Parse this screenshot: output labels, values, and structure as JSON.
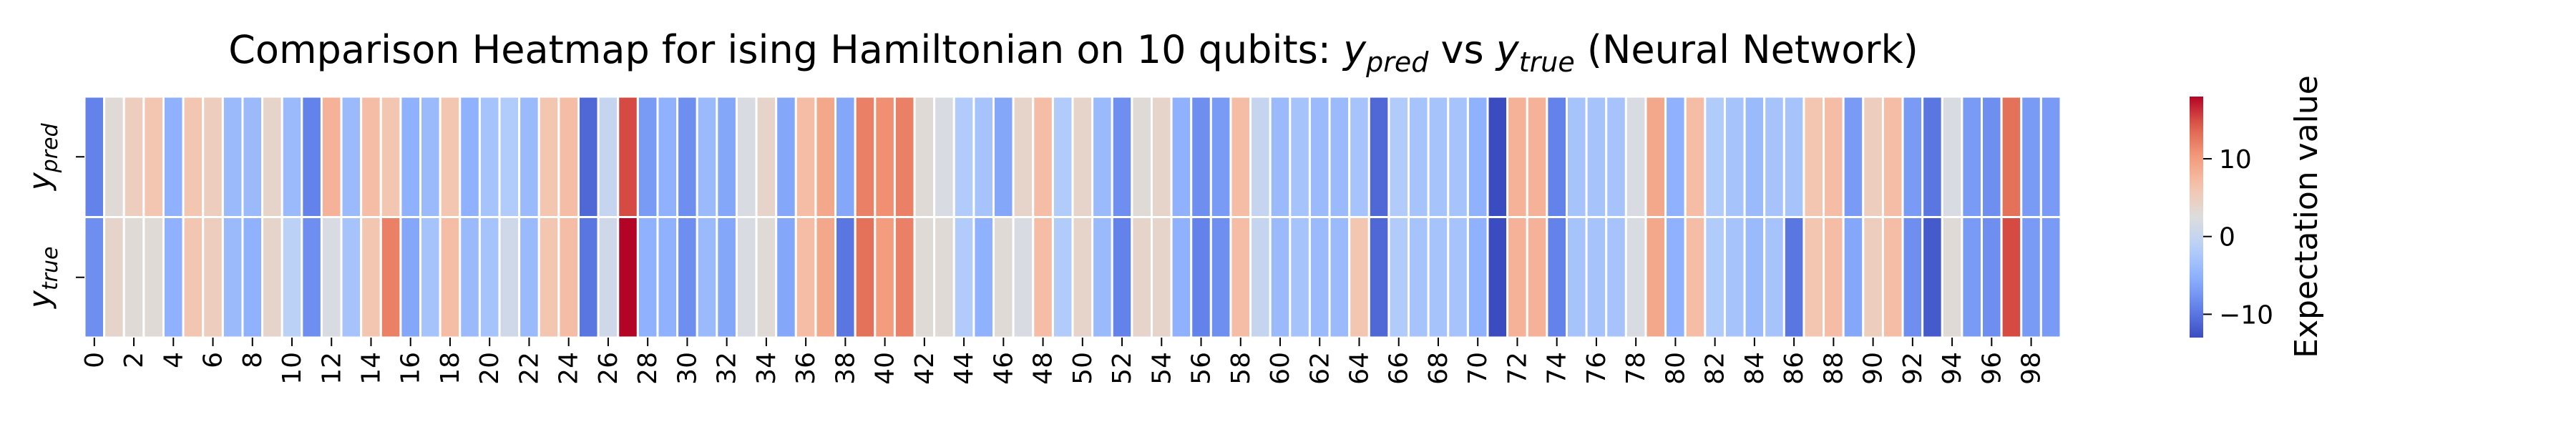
{
  "chart_data": {
    "type": "heatmap",
    "title": {
      "prefix": "Comparison Heatmap for ising Hamiltonian on 10 qubits: ",
      "pred_symbol": "y",
      "pred_sub": "pred",
      "vs": " vs ",
      "true_symbol": "y",
      "true_sub": "true",
      "suffix": " (Neural Network)"
    },
    "rows": [
      {
        "symbol": "y",
        "sub": "pred"
      },
      {
        "symbol": "y",
        "sub": "true"
      }
    ],
    "columns": [
      0,
      1,
      2,
      3,
      4,
      5,
      6,
      7,
      8,
      9,
      10,
      11,
      12,
      13,
      14,
      15,
      16,
      17,
      18,
      19,
      20,
      21,
      22,
      23,
      24,
      25,
      26,
      27,
      28,
      29,
      30,
      31,
      32,
      33,
      34,
      35,
      36,
      37,
      38,
      39,
      40,
      41,
      42,
      43,
      44,
      45,
      46,
      47,
      48,
      49,
      50,
      51,
      52,
      53,
      54,
      55,
      56,
      57,
      58,
      59,
      60,
      61,
      62,
      63,
      64,
      65,
      66,
      67,
      68,
      69,
      70,
      71,
      72,
      73,
      74,
      75,
      76,
      77,
      78,
      79,
      80,
      81,
      82,
      83,
      84,
      85,
      86,
      87,
      88,
      89,
      90,
      91,
      92,
      93,
      94,
      95,
      96,
      97,
      98,
      99
    ],
    "x_ticks": [
      0,
      2,
      4,
      6,
      8,
      10,
      12,
      14,
      16,
      18,
      20,
      22,
      24,
      26,
      28,
      30,
      32,
      34,
      36,
      38,
      40,
      42,
      44,
      46,
      48,
      50,
      52,
      54,
      56,
      58,
      60,
      62,
      64,
      66,
      68,
      70,
      72,
      74,
      76,
      78,
      80,
      82,
      84,
      86,
      88,
      90,
      92,
      94,
      96,
      98
    ],
    "values": [
      [
        -9,
        3,
        5,
        6,
        -5,
        6,
        5,
        -4,
        -4,
        4,
        -4,
        -9,
        8,
        -4,
        7,
        6,
        -5,
        -4,
        6,
        -5,
        -3,
        -2,
        -4,
        6,
        7,
        -11,
        0,
        15,
        -7,
        -5,
        -8,
        -4,
        -6,
        2,
        4,
        -6,
        7,
        9,
        -6,
        12,
        11,
        12,
        3,
        2,
        -2,
        -3,
        -6,
        4,
        7,
        -2,
        4,
        -4,
        -8,
        3,
        4,
        -5,
        -8,
        -7,
        7,
        0,
        -4,
        -3,
        -4,
        -4,
        -3,
        -11,
        -2,
        -3,
        -3,
        -3,
        -5,
        -13,
        8,
        8,
        -9,
        -3,
        -3,
        -3,
        2,
        9,
        -5,
        7,
        -2,
        -3,
        -4,
        -3,
        -3,
        6,
        7,
        -7,
        5,
        7,
        -7,
        -10,
        2,
        -7,
        -8,
        13,
        -7,
        -7
      ],
      [
        -8,
        4,
        3,
        3,
        -5,
        6,
        5,
        -4,
        -5,
        4,
        -1,
        -8,
        2,
        -3,
        6,
        12,
        -6,
        -3,
        7,
        -4,
        -3,
        1,
        -4,
        6,
        7,
        -10,
        1,
        18,
        -5,
        -5,
        -8,
        -4,
        -6,
        2,
        3,
        -6,
        7,
        9,
        -10,
        13,
        10,
        12,
        3,
        3,
        -2,
        -5,
        3,
        2,
        7,
        -2,
        4,
        -4,
        -9,
        4,
        4,
        -5,
        -9,
        -8,
        7,
        0,
        -4,
        -3,
        -4,
        -4,
        6,
        -11,
        -2,
        -3,
        -3,
        -3,
        -5,
        -13,
        8,
        8,
        -9,
        -3,
        -3,
        -3,
        2,
        9,
        -5,
        7,
        -2,
        -3,
        -4,
        -3,
        -10,
        6,
        7,
        -6,
        5,
        7,
        -8,
        -12,
        3,
        -7,
        -8,
        15,
        -7,
        -7
      ]
    ],
    "colormap": "coolwarm",
    "vmin": -13,
    "vmax": 18,
    "colorbar": {
      "label": "Expectation value",
      "ticks": [
        -10,
        0,
        10
      ],
      "tick_labels": [
        "−10",
        "0",
        "10"
      ]
    },
    "grid": false
  }
}
